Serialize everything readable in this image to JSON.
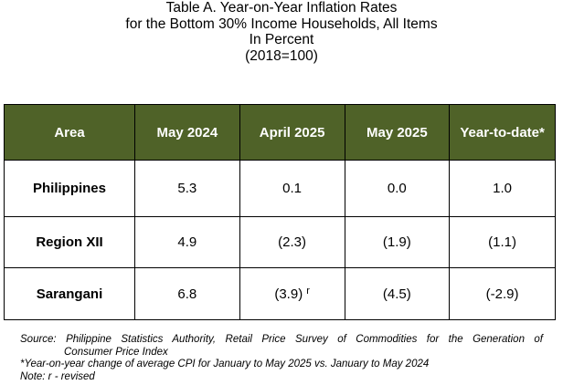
{
  "title": {
    "line1": "Table A. Year-on-Year Inflation Rates",
    "line2": "for the Bottom 30% Income Households, All Items",
    "line3": "In Percent",
    "line4": "(2018=100)"
  },
  "table": {
    "header_bg": "#4f6228",
    "headers": [
      "Area",
      "May 2024",
      "April 2025",
      "May 2025",
      "Year-to-date*"
    ],
    "rows": [
      {
        "area": "Philippines",
        "may2024": "5.3",
        "apr2025": "0.1",
        "apr2025_note": "",
        "may2025": "0.0",
        "ytd": "1.0"
      },
      {
        "area": "Region XII",
        "may2024": "4.9",
        "apr2025": "(2.3)",
        "apr2025_note": "",
        "may2025": "(1.9)",
        "ytd": "(1.1)"
      },
      {
        "area": "Sarangani",
        "may2024": "6.8",
        "apr2025": "(3.9)",
        "apr2025_note": "r",
        "may2025": "(4.5)",
        "ytd": "(-2.9)"
      }
    ]
  },
  "notes": {
    "source_line1": "Source: Philippine Statistics Authority, Retail Price Survey of Commodities for the Generation of",
    "source_line2": "Consumer Price Index",
    "ytd_note": "*Year-on-year change of average CPI for January to May 2025 vs. January to May 2024",
    "revised_note": "Note: r - revised"
  }
}
